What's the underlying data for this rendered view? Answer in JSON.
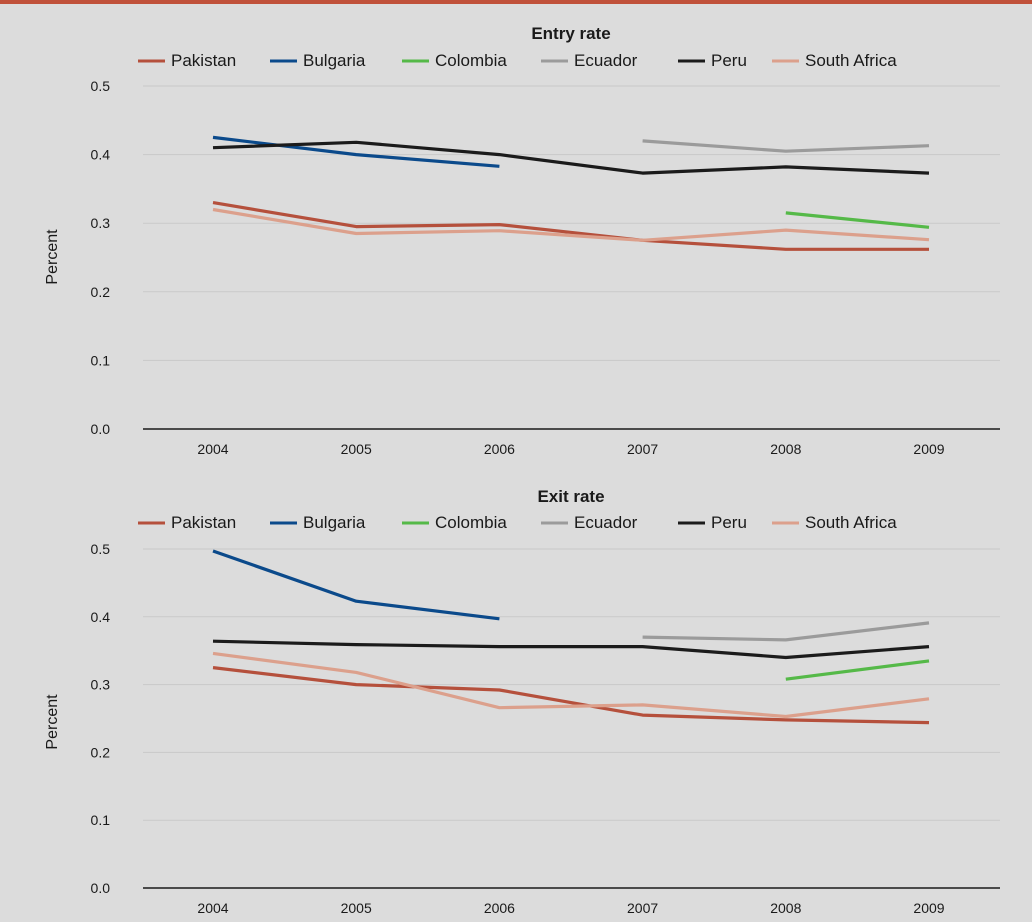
{
  "chart_data": [
    {
      "type": "line",
      "title": "Entry rate",
      "ylabel": "Percent",
      "xlabel": "",
      "ylim": [
        0,
        0.5
      ],
      "yticks": [
        "0.0",
        "0.1",
        "0.2",
        "0.3",
        "0.4",
        "0.5"
      ],
      "categories": [
        "2004",
        "2005",
        "2006",
        "2007",
        "2008",
        "2009"
      ],
      "grid": true,
      "legend": "top",
      "series": [
        {
          "name": "Pakistan",
          "color": "#b5503c",
          "values": [
            0.33,
            0.295,
            0.298,
            0.275,
            0.262,
            0.262
          ]
        },
        {
          "name": "Bulgaria",
          "color": "#0b4a8b",
          "values": [
            0.425,
            0.4,
            0.383,
            null,
            null,
            null
          ]
        },
        {
          "name": "Colombia",
          "color": "#55b948",
          "values": [
            null,
            null,
            null,
            null,
            0.315,
            0.294
          ]
        },
        {
          "name": "Ecuador",
          "color": "#9b9b9b",
          "values": [
            null,
            null,
            null,
            0.42,
            0.405,
            0.413
          ]
        },
        {
          "name": "Peru",
          "color": "#1b1b1b",
          "values": [
            0.41,
            0.418,
            0.4,
            0.373,
            0.382,
            0.373
          ]
        },
        {
          "name": "South Africa",
          "color": "#dca08c",
          "values": [
            0.32,
            0.285,
            0.289,
            0.275,
            0.29,
            0.276
          ]
        }
      ]
    },
    {
      "type": "line",
      "title": "Exit rate",
      "ylabel": "Percent",
      "xlabel": "",
      "ylim": [
        0,
        0.5
      ],
      "yticks": [
        "0.0",
        "0.1",
        "0.2",
        "0.3",
        "0.4",
        "0.5"
      ],
      "categories": [
        "2004",
        "2005",
        "2006",
        "2007",
        "2008",
        "2009"
      ],
      "grid": true,
      "legend": "top",
      "series": [
        {
          "name": "Pakistan",
          "color": "#b5503c",
          "values": [
            0.325,
            0.3,
            0.292,
            0.255,
            0.248,
            0.244
          ]
        },
        {
          "name": "Bulgaria",
          "color": "#0b4a8b",
          "values": [
            0.497,
            0.423,
            0.397,
            null,
            null,
            null
          ]
        },
        {
          "name": "Colombia",
          "color": "#55b948",
          "values": [
            null,
            null,
            null,
            null,
            0.308,
            0.335
          ]
        },
        {
          "name": "Ecuador",
          "color": "#9b9b9b",
          "values": [
            null,
            null,
            null,
            0.37,
            0.366,
            0.391
          ]
        },
        {
          "name": "Peru",
          "color": "#1b1b1b",
          "values": [
            0.364,
            0.359,
            0.356,
            0.356,
            0.34,
            0.356
          ]
        },
        {
          "name": "South Africa",
          "color": "#dca08c",
          "values": [
            0.346,
            0.318,
            0.266,
            0.27,
            0.253,
            0.279
          ]
        }
      ]
    }
  ]
}
